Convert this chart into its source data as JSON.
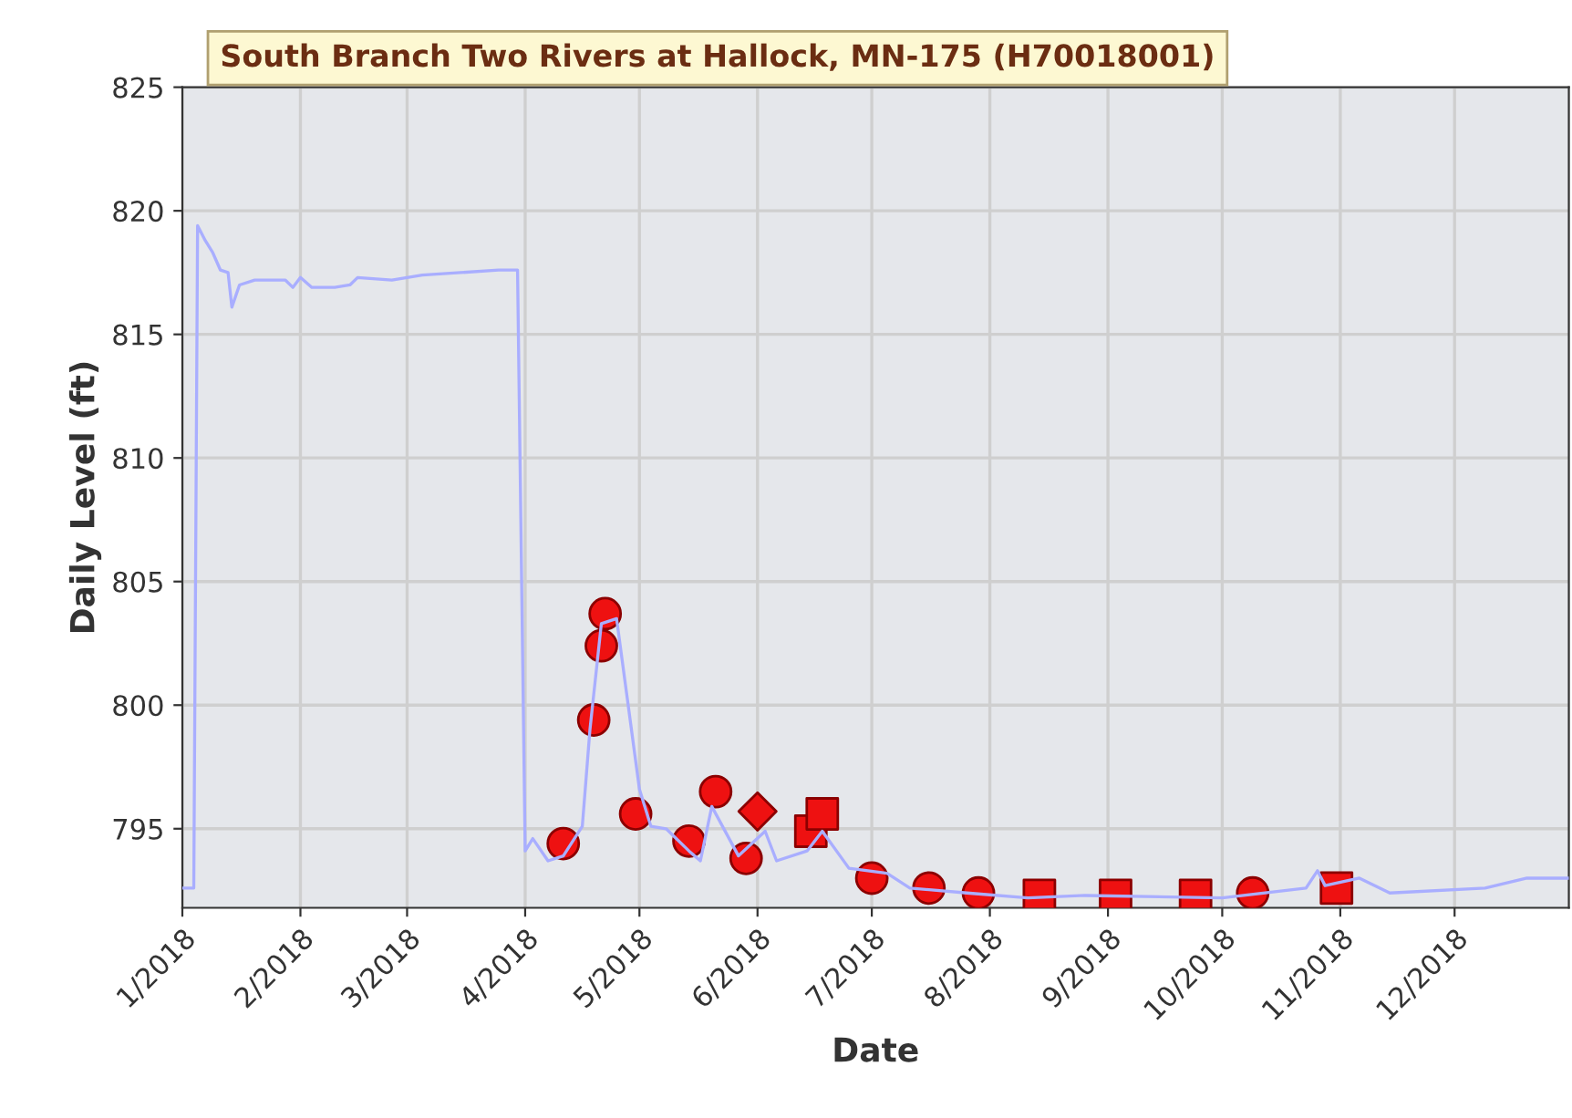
{
  "chart_data": {
    "type": "line",
    "title": "South Branch Two Rivers at Hallock, MN-175 (H70018001)",
    "xlabel": "Date",
    "ylabel": "Daily Level (ft)",
    "xlim": [
      "2018-01-01",
      "2018-12-31"
    ],
    "xticks": [
      {
        "value": "2018-01-01",
        "label": "1/2018"
      },
      {
        "value": "2018-02-01",
        "label": "2/2018"
      },
      {
        "value": "2018-03-01",
        "label": "3/2018"
      },
      {
        "value": "2018-04-01",
        "label": "4/2018"
      },
      {
        "value": "2018-05-01",
        "label": "5/2018"
      },
      {
        "value": "2018-06-01",
        "label": "6/2018"
      },
      {
        "value": "2018-07-01",
        "label": "7/2018"
      },
      {
        "value": "2018-08-01",
        "label": "8/2018"
      },
      {
        "value": "2018-09-01",
        "label": "9/2018"
      },
      {
        "value": "2018-10-01",
        "label": "10/2018"
      },
      {
        "value": "2018-11-01",
        "label": "11/2018"
      },
      {
        "value": "2018-12-01",
        "label": "12/2018"
      }
    ],
    "ylim": [
      791.8,
      825
    ],
    "yticks": [
      795,
      800,
      805,
      810,
      815,
      820,
      825
    ],
    "grid": true,
    "legend": false,
    "series": [
      {
        "color": "#a9aeff",
        "marker": "none",
        "line_style": "solid",
        "x": [
          "2018-01-01",
          "2018-01-04",
          "2018-01-05",
          "2018-01-07",
          "2018-01-09",
          "2018-01-11",
          "2018-01-13",
          "2018-01-14",
          "2018-01-16",
          "2018-01-20",
          "2018-01-28",
          "2018-01-30",
          "2018-02-01",
          "2018-02-04",
          "2018-02-10",
          "2018-02-14",
          "2018-02-16",
          "2018-02-25",
          "2018-03-05",
          "2018-03-15",
          "2018-03-25",
          "2018-03-30",
          "2018-04-01",
          "2018-04-03",
          "2018-04-07",
          "2018-04-11",
          "2018-04-16",
          "2018-04-18",
          "2018-04-21",
          "2018-04-25",
          "2018-05-01",
          "2018-05-04",
          "2018-05-08",
          "2018-05-14",
          "2018-05-17",
          "2018-05-20",
          "2018-05-27",
          "2018-06-03",
          "2018-06-06",
          "2018-06-14",
          "2018-06-18",
          "2018-06-25",
          "2018-07-05",
          "2018-07-11",
          "2018-07-26",
          "2018-08-11",
          "2018-08-26",
          "2018-10-01",
          "2018-10-23",
          "2018-10-26",
          "2018-10-28",
          "2018-11-06",
          "2018-11-14",
          "2018-12-09",
          "2018-12-20",
          "2018-12-31"
        ],
        "values": [
          792.6,
          792.6,
          819.4,
          818.8,
          818.3,
          817.6,
          817.5,
          816.1,
          817.0,
          817.2,
          817.2,
          816.9,
          817.3,
          816.9,
          816.9,
          817.0,
          817.3,
          817.2,
          817.4,
          817.5,
          817.6,
          817.6,
          794.1,
          794.6,
          793.7,
          793.9,
          795.1,
          799.0,
          803.3,
          803.5,
          796.6,
          795.1,
          795.0,
          794.1,
          793.7,
          795.9,
          793.9,
          794.9,
          793.7,
          794.1,
          794.9,
          793.4,
          793.2,
          792.6,
          792.4,
          792.2,
          792.3,
          792.2,
          792.6,
          793.3,
          792.7,
          793.0,
          792.4,
          792.6,
          793.0,
          793.0
        ]
      },
      {
        "type": "scatter",
        "color": "#ee1111",
        "marker": "circle",
        "x": [
          "2018-04-11",
          "2018-04-19",
          "2018-04-21",
          "2018-04-22",
          "2018-04-30",
          "2018-05-14",
          "2018-05-21",
          "2018-05-29",
          "2018-07-01",
          "2018-07-16",
          "2018-07-29",
          "2018-10-09"
        ],
        "values": [
          794.4,
          799.4,
          802.4,
          803.7,
          795.6,
          794.5,
          796.5,
          793.8,
          793.0,
          792.6,
          792.4,
          792.4
        ]
      },
      {
        "type": "scatter",
        "color": "#ee1111",
        "marker": "diamond",
        "x": [
          "2018-06-01"
        ],
        "values": [
          795.7
        ]
      },
      {
        "type": "scatter",
        "color": "#ee1111",
        "marker": "square",
        "x": [
          "2018-06-15",
          "2018-06-18",
          "2018-08-14",
          "2018-09-03",
          "2018-09-24",
          "2018-10-31"
        ],
        "values": [
          794.9,
          795.6,
          792.3,
          792.3,
          792.3,
          792.6
        ]
      }
    ]
  }
}
